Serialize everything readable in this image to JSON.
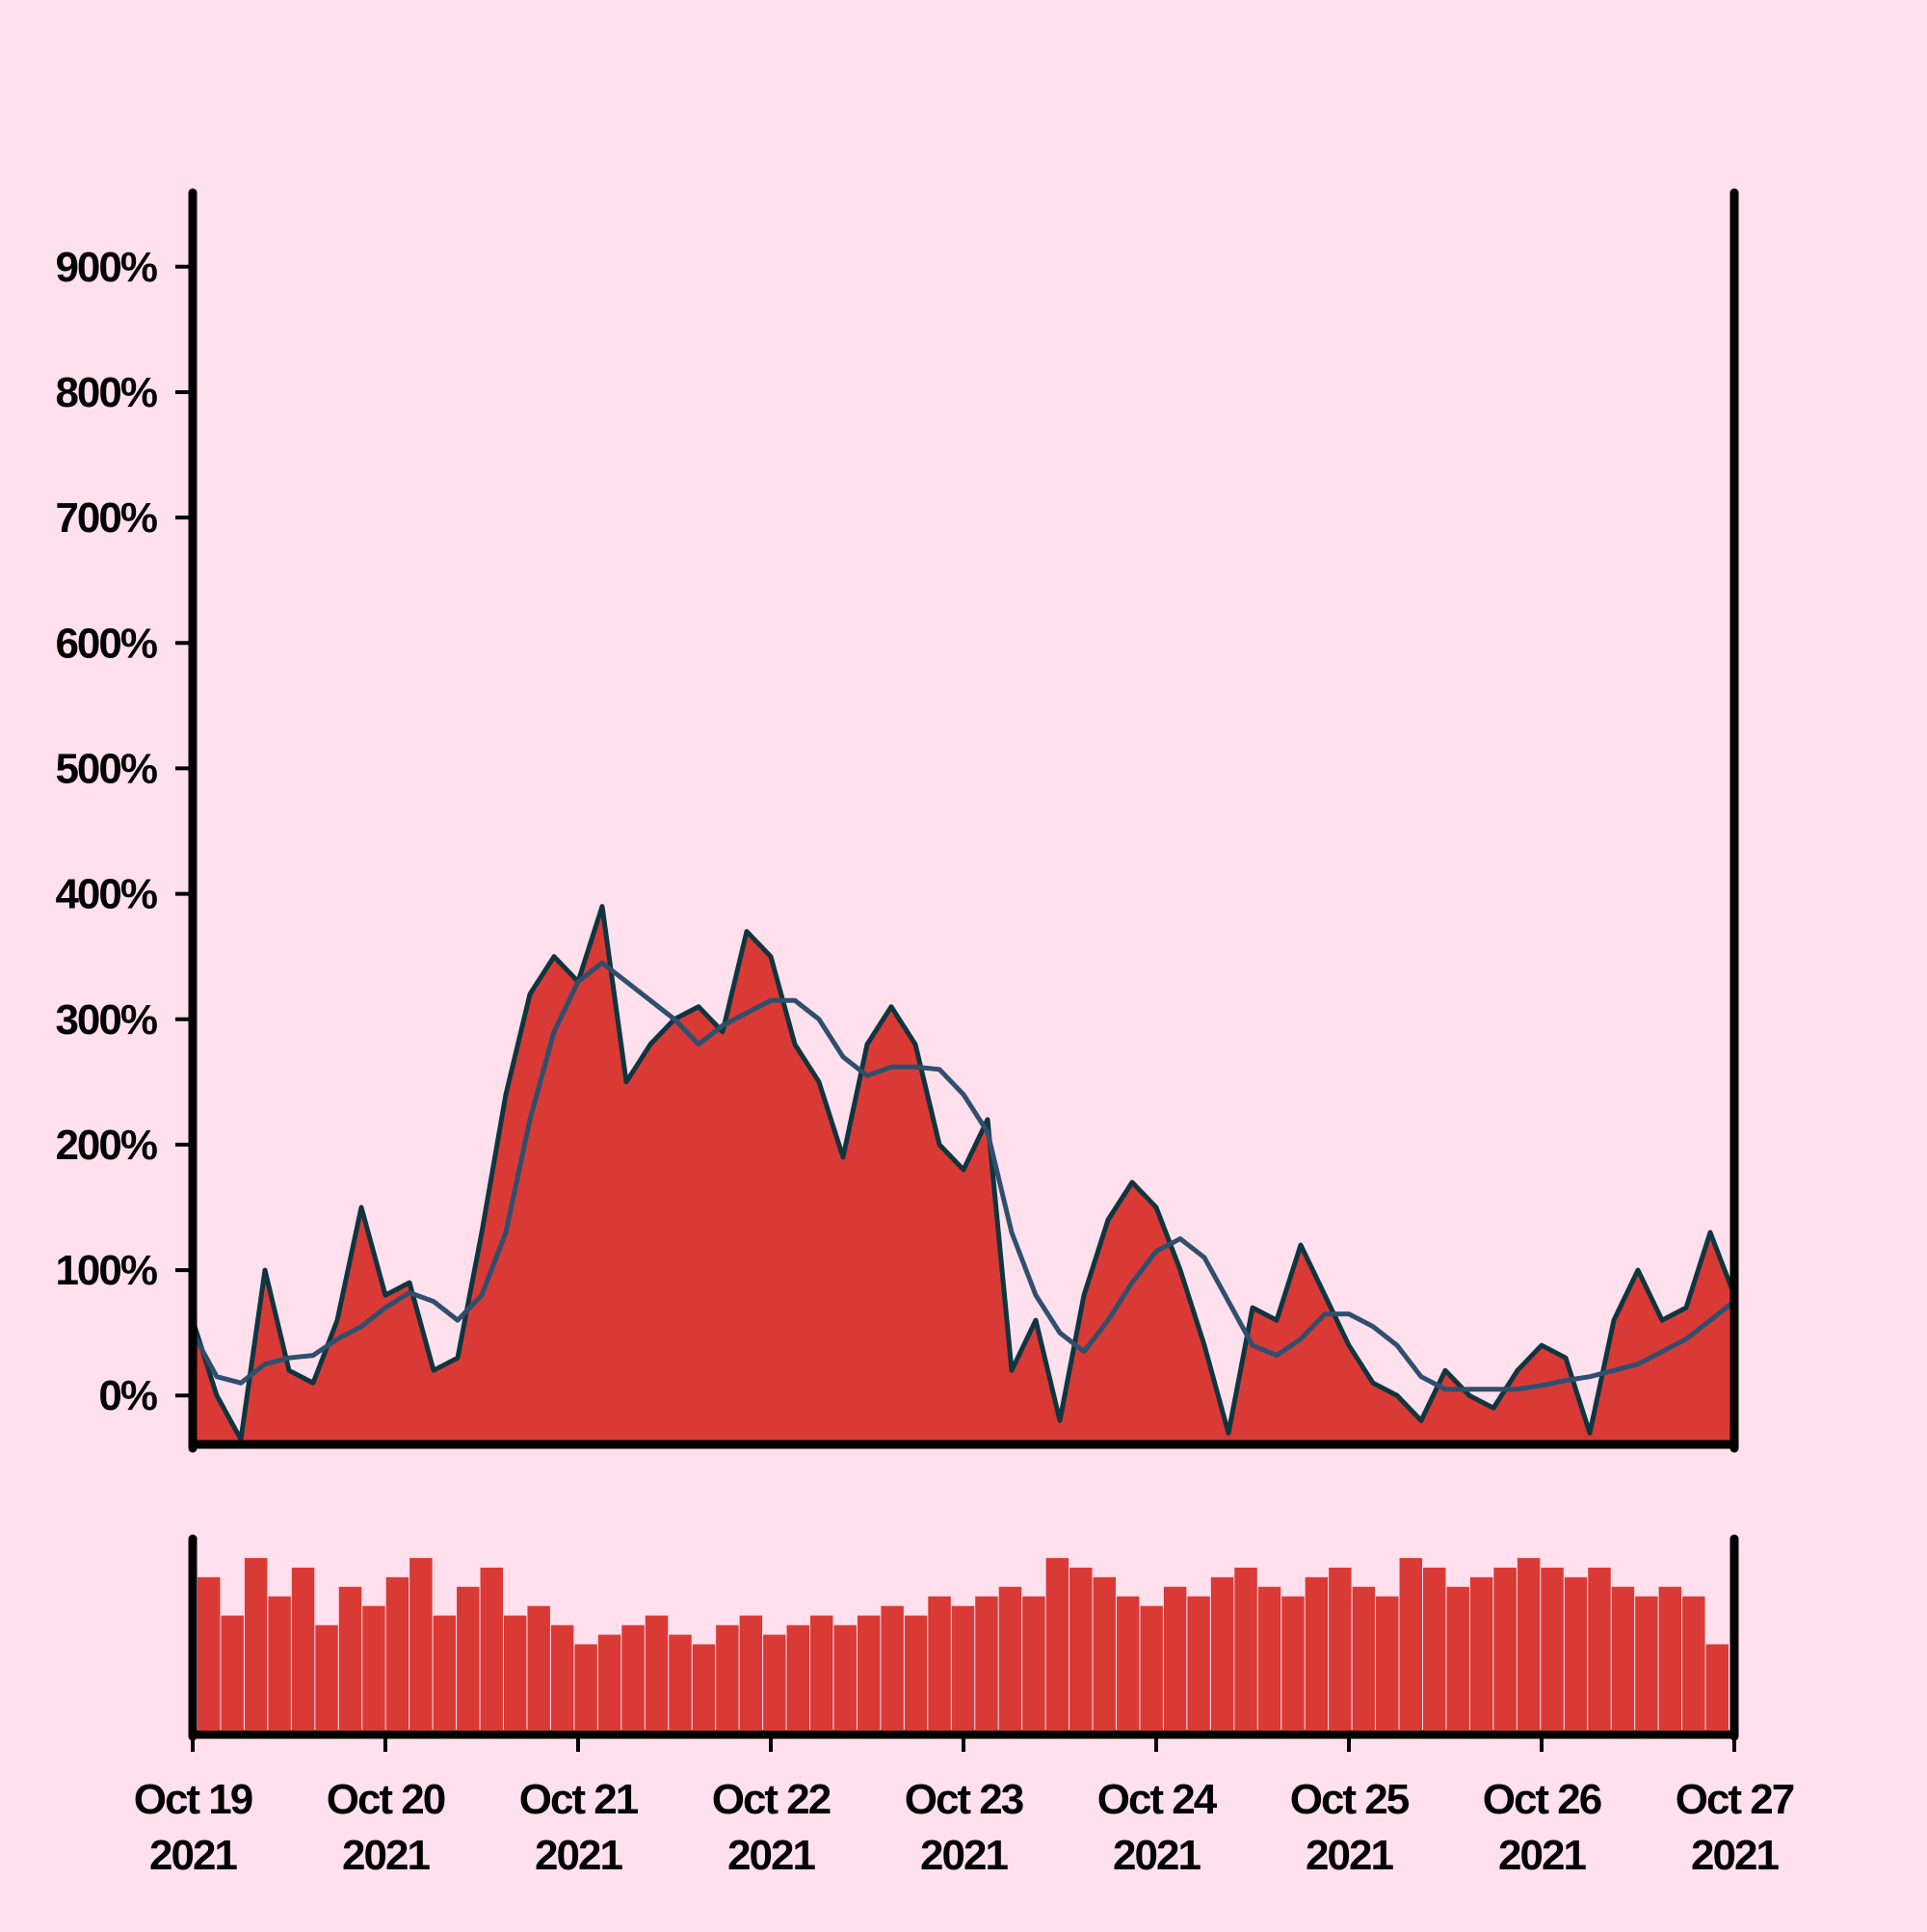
{
  "chart_data": {
    "type": "area",
    "categories": [
      "Oct 19\n2021",
      null,
      null,
      null,
      null,
      null,
      null,
      null,
      "Oct 20\n2021",
      null,
      null,
      null,
      null,
      null,
      null,
      null,
      "Oct 21\n2021",
      null,
      null,
      null,
      null,
      null,
      null,
      null,
      "Oct 22\n2021",
      null,
      null,
      null,
      null,
      null,
      null,
      null,
      "Oct 23\n2021",
      null,
      null,
      null,
      null,
      null,
      null,
      null,
      "Oct 24\n2021",
      null,
      null,
      null,
      null,
      null,
      null,
      null,
      "Oct 25\n2021",
      null,
      null,
      null,
      null,
      null,
      null,
      null,
      "Oct 26\n2021",
      null,
      null,
      null,
      null,
      null,
      null,
      null,
      "Oct 27\n2021"
    ],
    "series": [
      {
        "type": "area",
        "color": "#d93a35",
        "line_color": "#0f3640",
        "values": [
          60,
          0,
          -35,
          100,
          20,
          10,
          60,
          150,
          80,
          90,
          20,
          30,
          130,
          240,
          320,
          350,
          330,
          390,
          250,
          280,
          300,
          310,
          290,
          370,
          350,
          280,
          250,
          190,
          280,
          310,
          280,
          200,
          180,
          220,
          20,
          60,
          -20,
          80,
          140,
          170,
          150,
          100,
          40,
          -30,
          70,
          60,
          120,
          80,
          40,
          10,
          0,
          -20,
          20,
          0,
          -10,
          20,
          40,
          30,
          -30,
          60,
          100,
          60,
          70,
          130,
          80
        ]
      },
      {
        "type": "line",
        "color": "#2f4f6e",
        "values": [
          50,
          15,
          10,
          25,
          30,
          32,
          45,
          55,
          70,
          82,
          75,
          60,
          80,
          130,
          220,
          290,
          330,
          345,
          330,
          315,
          300,
          280,
          295,
          305,
          315,
          315,
          300,
          270,
          255,
          262,
          262,
          260,
          240,
          210,
          130,
          80,
          50,
          35,
          60,
          90,
          115,
          125,
          110,
          75,
          40,
          32,
          45,
          65,
          65,
          55,
          40,
          15,
          5,
          5,
          5,
          5,
          8,
          12,
          15,
          20,
          25,
          35,
          45,
          60,
          75
        ]
      }
    ],
    "ylim": [
      -39,
      959
    ],
    "yticks": [
      {
        "value": 0,
        "label": "0%"
      },
      {
        "value": 100,
        "label": "100%"
      },
      {
        "value": 200,
        "label": "200%"
      },
      {
        "value": 300,
        "label": "300%"
      },
      {
        "value": 400,
        "label": "400%"
      },
      {
        "value": 500,
        "label": "500%"
      },
      {
        "value": 600,
        "label": "600%"
      },
      {
        "value": 700,
        "label": "700%"
      },
      {
        "value": 800,
        "label": "800%"
      },
      {
        "value": 900,
        "label": "900%"
      }
    ],
    "volume": {
      "type": "bar",
      "color": "#d93a35",
      "ylim": [
        0,
        100
      ],
      "values": [
        80,
        60,
        90,
        70,
        85,
        55,
        75,
        65,
        80,
        90,
        60,
        75,
        85,
        60,
        65,
        55,
        45,
        50,
        55,
        60,
        50,
        45,
        55,
        60,
        50,
        55,
        60,
        55,
        60,
        65,
        60,
        70,
        65,
        70,
        75,
        70,
        90,
        85,
        80,
        70,
        65,
        75,
        70,
        80,
        85,
        75,
        70,
        80,
        85,
        75,
        70,
        90,
        85,
        75,
        80,
        85,
        90,
        85,
        80,
        85,
        75,
        70,
        75,
        70,
        45
      ]
    }
  }
}
